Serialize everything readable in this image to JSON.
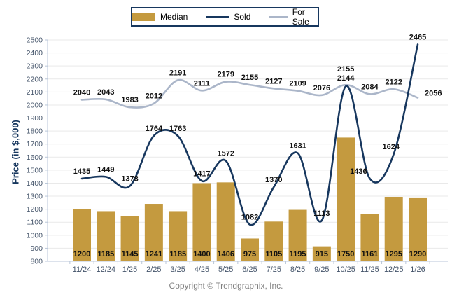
{
  "page": {
    "copyright": "Copyright © Trendgraphix, Inc."
  },
  "chart_data": {
    "type": "bar+line",
    "title": "",
    "xlabel": "",
    "ylabel": "Price (in $,000)",
    "ylim": [
      800,
      2500
    ],
    "ytick_step": 100,
    "grid": true,
    "legend_position": "top",
    "categories": [
      "11/24",
      "12/24",
      "1/25",
      "2/25",
      "3/25",
      "4/25",
      "5/25",
      "6/25",
      "7/25",
      "8/25",
      "9/25",
      "10/25",
      "11/25",
      "12/25",
      "1/26"
    ],
    "series": [
      {
        "name": "Median",
        "type": "bar",
        "color": "#C49A3F",
        "values": [
          1200,
          1185,
          1145,
          1241,
          1185,
          1400,
          1406,
          975,
          1105,
          1195,
          915,
          1750,
          1161,
          1295,
          1290
        ]
      },
      {
        "name": "Sold",
        "type": "line",
        "color": "#17375E",
        "values": [
          1435,
          1449,
          1378,
          1764,
          1763,
          1417,
          1572,
          1082,
          1370,
          1631,
          1113,
          2144,
          1436,
          1624,
          2465
        ]
      },
      {
        "name": "For Sale",
        "type": "line",
        "color": "#ABB6C9",
        "values": [
          2040,
          2043,
          1983,
          2012,
          2191,
          2111,
          2179,
          2155,
          2127,
          2109,
          2076,
          2155,
          2084,
          2122,
          2056
        ]
      }
    ],
    "colors": {
      "axis": "#B9C6D8",
      "gridline": "#E9E9E9",
      "tick_label": "#44546A",
      "data_label": "#111111",
      "legend_border": "#17375E"
    }
  }
}
